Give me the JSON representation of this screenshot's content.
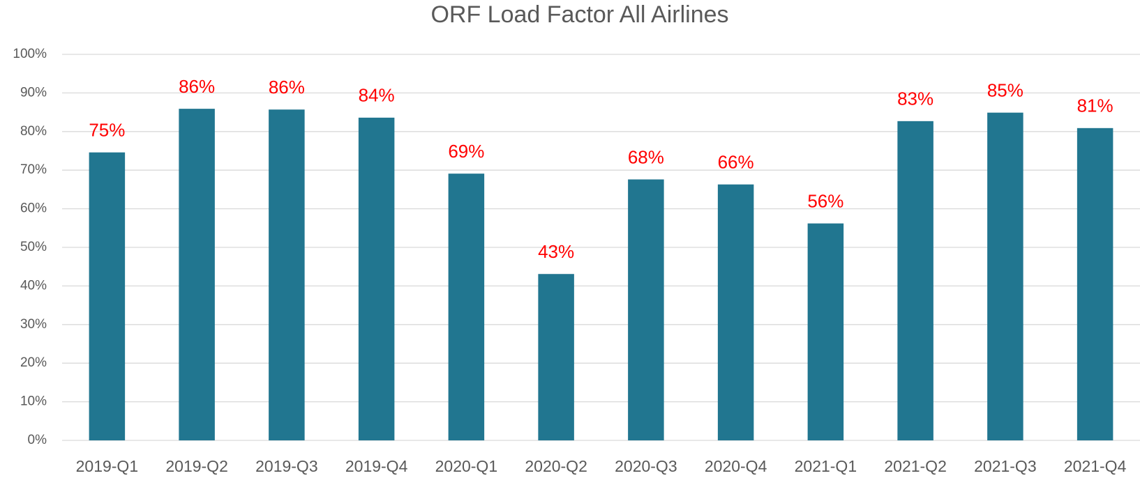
{
  "chart_data": {
    "type": "bar",
    "title": "ORF Load Factor All Airlines",
    "categories": [
      "2019-Q1",
      "2019-Q2",
      "2019-Q3",
      "2019-Q4",
      "2020-Q1",
      "2020-Q2",
      "2020-Q3",
      "2020-Q4",
      "2021-Q1",
      "2021-Q2",
      "2021-Q3",
      "2021-Q4"
    ],
    "values": [
      74.6,
      85.9,
      85.7,
      83.6,
      69.1,
      43.1,
      67.6,
      66.3,
      56.2,
      82.7,
      84.9,
      80.9
    ],
    "value_labels": [
      "75%",
      "86%",
      "86%",
      "84%",
      "69%",
      "43%",
      "68%",
      "66%",
      "56%",
      "83%",
      "85%",
      "81%"
    ],
    "color": "#217690",
    "ylim": [
      0,
      100
    ],
    "yticks": [
      {
        "value": 0,
        "label": "0%"
      },
      {
        "value": 10,
        "label": "10%"
      },
      {
        "value": 20,
        "label": "20%"
      },
      {
        "value": 30,
        "label": "30%"
      },
      {
        "value": 40,
        "label": "40%"
      },
      {
        "value": 50,
        "label": "50%"
      },
      {
        "value": 60,
        "label": "60%"
      },
      {
        "value": 70,
        "label": "70%"
      },
      {
        "value": 80,
        "label": "80%"
      },
      {
        "value": 90,
        "label": "90%"
      },
      {
        "value": 100,
        "label": "100%"
      }
    ],
    "grid": true
  }
}
